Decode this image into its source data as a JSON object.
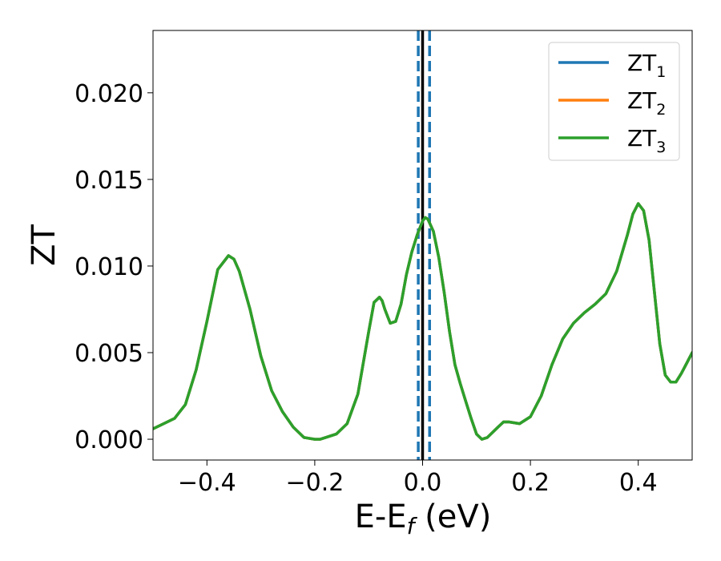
{
  "chart_data": {
    "type": "line",
    "xlabel": {
      "main": "E-E",
      "sub": "f",
      "suffix": " (eV)"
    },
    "ylabel": "ZT",
    "xlim": [
      -0.5,
      0.5
    ],
    "ylim": [
      -0.0012,
      0.0236
    ],
    "xticks": [
      -0.4,
      -0.2,
      0.0,
      0.2,
      0.4
    ],
    "xtick_labels": [
      "−0.4",
      "−0.2",
      "0.0",
      "0.2",
      "0.4"
    ],
    "yticks": [
      0.0,
      0.005,
      0.01,
      0.015,
      0.02
    ],
    "ytick_labels": [
      "0.000",
      "0.005",
      "0.010",
      "0.015",
      "0.020"
    ],
    "grid": false,
    "legend_position": "top-right",
    "vlines": [
      {
        "x": 0.0,
        "style": "solid",
        "color": "#000000"
      },
      {
        "x": -0.008,
        "style": "dashed",
        "color": "#1f77b4"
      },
      {
        "x": 0.013,
        "style": "dashed",
        "color": "#1f77b4"
      }
    ],
    "x": [
      -0.5,
      -0.48,
      -0.46,
      -0.44,
      -0.42,
      -0.4,
      -0.38,
      -0.36,
      -0.35,
      -0.34,
      -0.32,
      -0.3,
      -0.28,
      -0.26,
      -0.24,
      -0.22,
      -0.2,
      -0.19,
      -0.18,
      -0.16,
      -0.14,
      -0.12,
      -0.1,
      -0.09,
      -0.08,
      -0.075,
      -0.07,
      -0.06,
      -0.05,
      -0.04,
      -0.03,
      -0.02,
      -0.01,
      0.0,
      0.005,
      0.01,
      0.02,
      0.03,
      0.04,
      0.05,
      0.06,
      0.07,
      0.08,
      0.09,
      0.1,
      0.11,
      0.12,
      0.13,
      0.14,
      0.15,
      0.16,
      0.18,
      0.2,
      0.22,
      0.24,
      0.26,
      0.28,
      0.3,
      0.32,
      0.34,
      0.36,
      0.38,
      0.39,
      0.4,
      0.41,
      0.42,
      0.43,
      0.44,
      0.45,
      0.46,
      0.47,
      0.48,
      0.49,
      0.5
    ],
    "series": [
      {
        "name": "ZT",
        "sub": "1",
        "color": "#1f77b4",
        "values": [
          0.0006,
          0.0009,
          0.0012,
          0.002,
          0.004,
          0.0068,
          0.0098,
          0.0106,
          0.0104,
          0.0097,
          0.0075,
          0.0048,
          0.0028,
          0.0016,
          0.0007,
          0.0001,
          0.0,
          0.0,
          0.0001,
          0.0003,
          0.0009,
          0.0026,
          0.0062,
          0.0079,
          0.0082,
          0.008,
          0.0075,
          0.0067,
          0.0068,
          0.0078,
          0.0095,
          0.0108,
          0.0118,
          0.0126,
          0.0128,
          0.0127,
          0.012,
          0.0105,
          0.0085,
          0.0062,
          0.0043,
          0.0032,
          0.0022,
          0.0012,
          0.0003,
          0.0,
          0.0001,
          0.0004,
          0.0007,
          0.001,
          0.001,
          0.0009,
          0.0013,
          0.0025,
          0.0043,
          0.0058,
          0.0067,
          0.0073,
          0.0078,
          0.0084,
          0.0097,
          0.0118,
          0.013,
          0.0136,
          0.0132,
          0.0115,
          0.0085,
          0.0055,
          0.0037,
          0.0033,
          0.0033,
          0.0038,
          0.0044,
          0.005
        ]
      },
      {
        "name": "ZT",
        "sub": "2",
        "color": "#ff7f0e",
        "values": [
          0.0006,
          0.0009,
          0.0012,
          0.002,
          0.004,
          0.0068,
          0.0098,
          0.0106,
          0.0104,
          0.0097,
          0.0075,
          0.0048,
          0.0028,
          0.0016,
          0.0007,
          0.0001,
          0.0,
          0.0,
          0.0001,
          0.0003,
          0.0009,
          0.0026,
          0.0062,
          0.0079,
          0.0082,
          0.008,
          0.0075,
          0.0067,
          0.0068,
          0.0078,
          0.0095,
          0.0108,
          0.0118,
          0.0126,
          0.0128,
          0.0127,
          0.012,
          0.0105,
          0.0085,
          0.0062,
          0.0043,
          0.0032,
          0.0022,
          0.0012,
          0.0003,
          0.0,
          0.0001,
          0.0004,
          0.0007,
          0.001,
          0.001,
          0.0009,
          0.0013,
          0.0025,
          0.0043,
          0.0058,
          0.0067,
          0.0073,
          0.0078,
          0.0084,
          0.0097,
          0.0118,
          0.013,
          0.0136,
          0.0132,
          0.0115,
          0.0085,
          0.0055,
          0.0037,
          0.0033,
          0.0033,
          0.0038,
          0.0044,
          0.005
        ]
      },
      {
        "name": "ZT",
        "sub": "3",
        "color": "#2ca02c",
        "values": [
          0.0006,
          0.0009,
          0.0012,
          0.002,
          0.004,
          0.0068,
          0.0098,
          0.0106,
          0.0104,
          0.0097,
          0.0075,
          0.0048,
          0.0028,
          0.0016,
          0.0007,
          0.0001,
          0.0,
          0.0,
          0.0001,
          0.0003,
          0.0009,
          0.0026,
          0.0062,
          0.0079,
          0.0082,
          0.008,
          0.0075,
          0.0067,
          0.0068,
          0.0078,
          0.0095,
          0.0108,
          0.0118,
          0.0126,
          0.0128,
          0.0127,
          0.012,
          0.0105,
          0.0085,
          0.0062,
          0.0043,
          0.0032,
          0.0022,
          0.0012,
          0.0003,
          0.0,
          0.0001,
          0.0004,
          0.0007,
          0.001,
          0.001,
          0.0009,
          0.0013,
          0.0025,
          0.0043,
          0.0058,
          0.0067,
          0.0073,
          0.0078,
          0.0084,
          0.0097,
          0.0118,
          0.013,
          0.0136,
          0.0132,
          0.0115,
          0.0085,
          0.0055,
          0.0037,
          0.0033,
          0.0033,
          0.0038,
          0.0044,
          0.005
        ]
      }
    ]
  }
}
